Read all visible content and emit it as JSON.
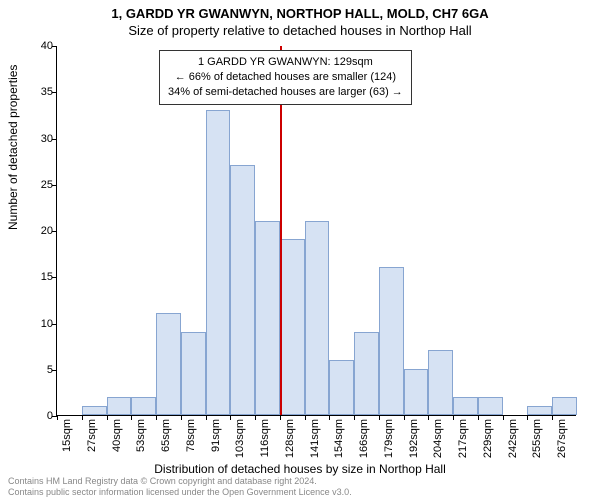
{
  "title_line1": "1, GARDD YR GWANWYN, NORTHOP HALL, MOLD, CH7 6GA",
  "title_line2": "Size of property relative to detached houses in Northop Hall",
  "ylabel": "Number of detached properties",
  "xlabel": "Distribution of detached houses by size in Northop Hall",
  "footer_line1": "Contains HM Land Registry data © Crown copyright and database right 2024.",
  "footer_line2": "Contains public sector information licensed under the Open Government Licence v3.0.",
  "chart": {
    "type": "histogram",
    "ylim": [
      0,
      40
    ],
    "ytick_step": 5,
    "yticks": [
      0,
      5,
      10,
      15,
      20,
      25,
      30,
      35,
      40
    ],
    "xticks": [
      "15sqm",
      "27sqm",
      "40sqm",
      "53sqm",
      "65sqm",
      "78sqm",
      "91sqm",
      "103sqm",
      "116sqm",
      "128sqm",
      "141sqm",
      "154sqm",
      "166sqm",
      "179sqm",
      "192sqm",
      "204sqm",
      "217sqm",
      "229sqm",
      "242sqm",
      "255sqm",
      "267sqm"
    ],
    "values": [
      0,
      1,
      2,
      2,
      11,
      9,
      33,
      27,
      21,
      19,
      21,
      6,
      9,
      16,
      5,
      7,
      2,
      2,
      0,
      1,
      2
    ],
    "bar_fill": "#d6e2f3",
    "bar_stroke": "#87a5d1",
    "background_color": "#ffffff",
    "axis_color": "#000000",
    "marker_index": 9,
    "marker_color": "#cc0000",
    "annotation": {
      "line1": "1 GARDD YR GWANWYN: 129sqm",
      "line2": "← 66% of detached houses are smaller (124)",
      "line3": "34% of semi-detached houses are larger (63) →"
    }
  }
}
